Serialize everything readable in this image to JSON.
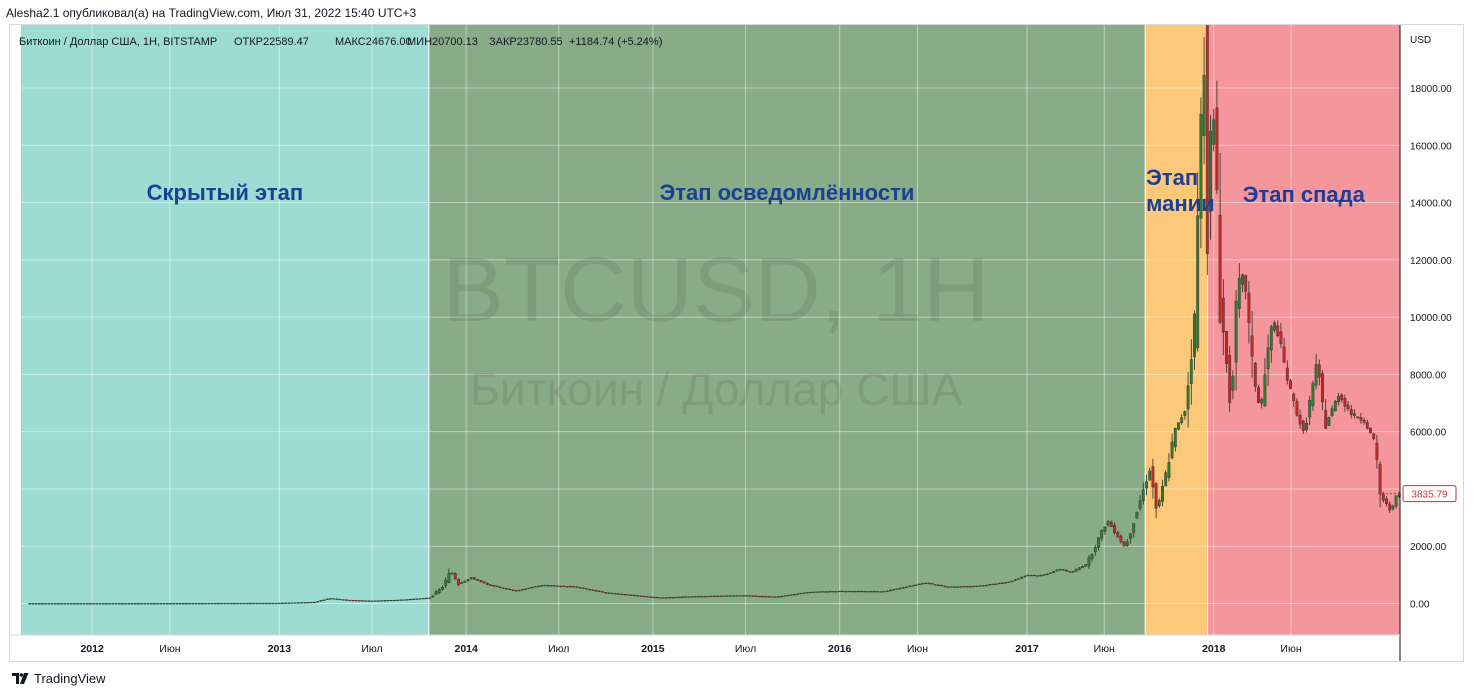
{
  "header": {
    "published_by": "Alesha2.1 опубликовал(а) на TradingView.com, Июл 31, 2022 15:40 UTC+3"
  },
  "legend": {
    "symbol": "Биткоин / Доллар США, 1H, BITSTAMP",
    "open": "ОТКР22589.47",
    "high": "МАКС24676.00",
    "low": "МИН20700.13",
    "close": "ЗАКР23780.55",
    "change": "+1184.74 (+5.24%)"
  },
  "watermark": {
    "ticker": "BTCUSD, 1H",
    "name": "Биткоин / Доллар США"
  },
  "footer": {
    "brand": "TradingView",
    "logo_icon": "tradingview-logo-icon"
  },
  "colors": {
    "phase_hidden": "#9ddcd2",
    "phase_awareness": "#88ab88",
    "phase_mania": "#fcc97a",
    "phase_decline": "#f5959c",
    "phase_label": "#1c3f96",
    "candle_up": "#2e7d32",
    "candle_down": "#c62828",
    "price_badge": "#d32f2f"
  },
  "chart_data": {
    "type": "candlestick",
    "title": "Биткоин / Доллар США, 1H, BITSTAMP",
    "y_axis_unit": "USD",
    "y_ticks": [
      "0.00",
      "2000.00",
      "4000.00",
      "6000.00",
      "8000.00",
      "10000.00",
      "12000.00",
      "14000.00",
      "16000.00",
      "18000.00"
    ],
    "y_tick_values": [
      0,
      2000,
      4000,
      6000,
      8000,
      10000,
      12000,
      14000,
      16000,
      18000
    ],
    "ylim": [
      -1100,
      20200
    ],
    "xlim": [
      "2011-08-15",
      "2018-12-31"
    ],
    "x_ticks": [
      {
        "label": "2012",
        "date": "2012-01-01"
      },
      {
        "label": "Июн",
        "date": "2012-06-01"
      },
      {
        "label": "2013",
        "date": "2013-01-01"
      },
      {
        "label": "Июл",
        "date": "2013-07-01"
      },
      {
        "label": "2014",
        "date": "2014-01-01"
      },
      {
        "label": "Июл",
        "date": "2014-07-01"
      },
      {
        "label": "2015",
        "date": "2015-01-01"
      },
      {
        "label": "Июл",
        "date": "2015-07-01"
      },
      {
        "label": "2016",
        "date": "2016-01-01"
      },
      {
        "label": "Июн",
        "date": "2016-06-01"
      },
      {
        "label": "2017",
        "date": "2017-01-01"
      },
      {
        "label": "Июн",
        "date": "2017-06-01"
      },
      {
        "label": "2018",
        "date": "2018-01-01"
      },
      {
        "label": "Июн",
        "date": "2018-06-01"
      }
    ],
    "phases": [
      {
        "label": "Скрытый этап",
        "start": "2011-08-15",
        "end": "2013-10-20",
        "color": "#9ddcd2"
      },
      {
        "label": "Этап осведомлённости",
        "start": "2013-10-20",
        "end": "2017-08-20",
        "color": "#88ab88"
      },
      {
        "label": "Этап мании",
        "start": "2017-08-20",
        "end": "2017-12-20",
        "color": "#fcc97a"
      },
      {
        "label": "Этап спада",
        "start": "2017-12-20",
        "end": "2018-12-31",
        "color": "#f5959c"
      }
    ],
    "last_price": "3835.79",
    "last_price_value": 3835.79,
    "series": [
      {
        "name": "BTCUSD",
        "points": [
          {
            "date": "2011-09-01",
            "value": 5
          },
          {
            "date": "2012-01-01",
            "value": 5
          },
          {
            "date": "2012-06-01",
            "value": 6
          },
          {
            "date": "2012-09-01",
            "value": 11
          },
          {
            "date": "2013-01-01",
            "value": 14
          },
          {
            "date": "2013-03-15",
            "value": 50
          },
          {
            "date": "2013-04-10",
            "value": 180
          },
          {
            "date": "2013-05-15",
            "value": 120
          },
          {
            "date": "2013-07-01",
            "value": 90
          },
          {
            "date": "2013-09-01",
            "value": 130
          },
          {
            "date": "2013-10-25",
            "value": 200
          },
          {
            "date": "2013-11-20",
            "value": 600
          },
          {
            "date": "2013-12-05",
            "value": 1150
          },
          {
            "date": "2013-12-20",
            "value": 700
          },
          {
            "date": "2014-01-15",
            "value": 900
          },
          {
            "date": "2014-02-15",
            "value": 650
          },
          {
            "date": "2014-04-10",
            "value": 440
          },
          {
            "date": "2014-06-01",
            "value": 640
          },
          {
            "date": "2014-08-01",
            "value": 590
          },
          {
            "date": "2014-10-01",
            "value": 380
          },
          {
            "date": "2015-01-15",
            "value": 200
          },
          {
            "date": "2015-04-01",
            "value": 250
          },
          {
            "date": "2015-07-01",
            "value": 280
          },
          {
            "date": "2015-09-01",
            "value": 230
          },
          {
            "date": "2015-11-05",
            "value": 400
          },
          {
            "date": "2016-01-01",
            "value": 430
          },
          {
            "date": "2016-04-01",
            "value": 420
          },
          {
            "date": "2016-06-18",
            "value": 720
          },
          {
            "date": "2016-08-01",
            "value": 580
          },
          {
            "date": "2016-10-01",
            "value": 610
          },
          {
            "date": "2016-12-01",
            "value": 760
          },
          {
            "date": "2017-01-05",
            "value": 1000
          },
          {
            "date": "2017-02-01",
            "value": 970
          },
          {
            "date": "2017-03-10",
            "value": 1200
          },
          {
            "date": "2017-04-01",
            "value": 1080
          },
          {
            "date": "2017-05-01",
            "value": 1400
          },
          {
            "date": "2017-05-25",
            "value": 2300
          },
          {
            "date": "2017-06-10",
            "value": 2900
          },
          {
            "date": "2017-07-15",
            "value": 1950
          },
          {
            "date": "2017-08-10",
            "value": 3400
          },
          {
            "date": "2017-09-01",
            "value": 4700
          },
          {
            "date": "2017-09-15",
            "value": 3200
          },
          {
            "date": "2017-10-01",
            "value": 4400
          },
          {
            "date": "2017-10-20",
            "value": 6000
          },
          {
            "date": "2017-11-10",
            "value": 6800
          },
          {
            "date": "2017-11-28",
            "value": 10000
          },
          {
            "date": "2017-12-08",
            "value": 16000
          },
          {
            "date": "2017-12-17",
            "value": 19300
          },
          {
            "date": "2017-12-22",
            "value": 13500
          },
          {
            "date": "2017-12-28",
            "value": 16000
          },
          {
            "date": "2018-01-06",
            "value": 17000
          },
          {
            "date": "2018-01-17",
            "value": 10500
          },
          {
            "date": "2018-02-06",
            "value": 6900
          },
          {
            "date": "2018-02-20",
            "value": 11000
          },
          {
            "date": "2018-03-05",
            "value": 11500
          },
          {
            "date": "2018-03-20",
            "value": 8300
          },
          {
            "date": "2018-04-05",
            "value": 6700
          },
          {
            "date": "2018-04-25",
            "value": 9500
          },
          {
            "date": "2018-05-05",
            "value": 9800
          },
          {
            "date": "2018-06-01",
            "value": 7500
          },
          {
            "date": "2018-06-29",
            "value": 5900
          },
          {
            "date": "2018-07-25",
            "value": 8400
          },
          {
            "date": "2018-08-10",
            "value": 6200
          },
          {
            "date": "2018-09-05",
            "value": 7300
          },
          {
            "date": "2018-10-01",
            "value": 6600
          },
          {
            "date": "2018-10-25",
            "value": 6400
          },
          {
            "date": "2018-11-15",
            "value": 5600
          },
          {
            "date": "2018-11-25",
            "value": 3800
          },
          {
            "date": "2018-12-15",
            "value": 3250
          },
          {
            "date": "2018-12-30",
            "value": 3835
          }
        ]
      }
    ]
  }
}
